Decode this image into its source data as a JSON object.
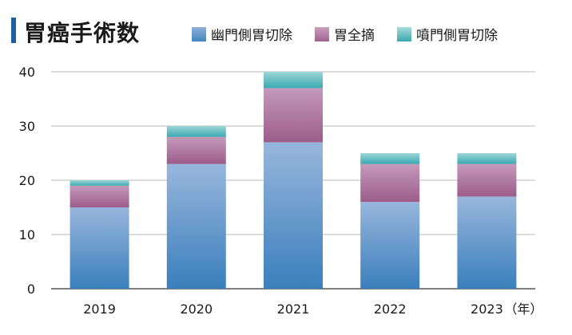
{
  "title": "胃癌手術数",
  "legend": [
    {
      "label": "幽門側胃切除",
      "color": "#3f86c0"
    },
    {
      "label": "胃全摘",
      "color": "#a0618f"
    },
    {
      "label": "噴門側胃切除",
      "color": "#3aa8b0"
    }
  ],
  "chart_data": {
    "type": "bar",
    "stacked": true,
    "categories": [
      "2019",
      "2020",
      "2021",
      "2022",
      "2023"
    ],
    "category_suffix": "（年）",
    "series": [
      {
        "name": "幽門側胃切除",
        "values": [
          15,
          23,
          27,
          16,
          17
        ]
      },
      {
        "name": "胃全摘",
        "values": [
          4,
          5,
          10,
          7,
          6
        ]
      },
      {
        "name": "噴門側胃切除",
        "values": [
          1,
          2,
          3,
          2,
          2
        ]
      }
    ],
    "yticks": [
      0,
      10,
      20,
      30,
      40
    ],
    "ylim": [
      0,
      40
    ],
    "grid": true,
    "legend_position": "top"
  }
}
